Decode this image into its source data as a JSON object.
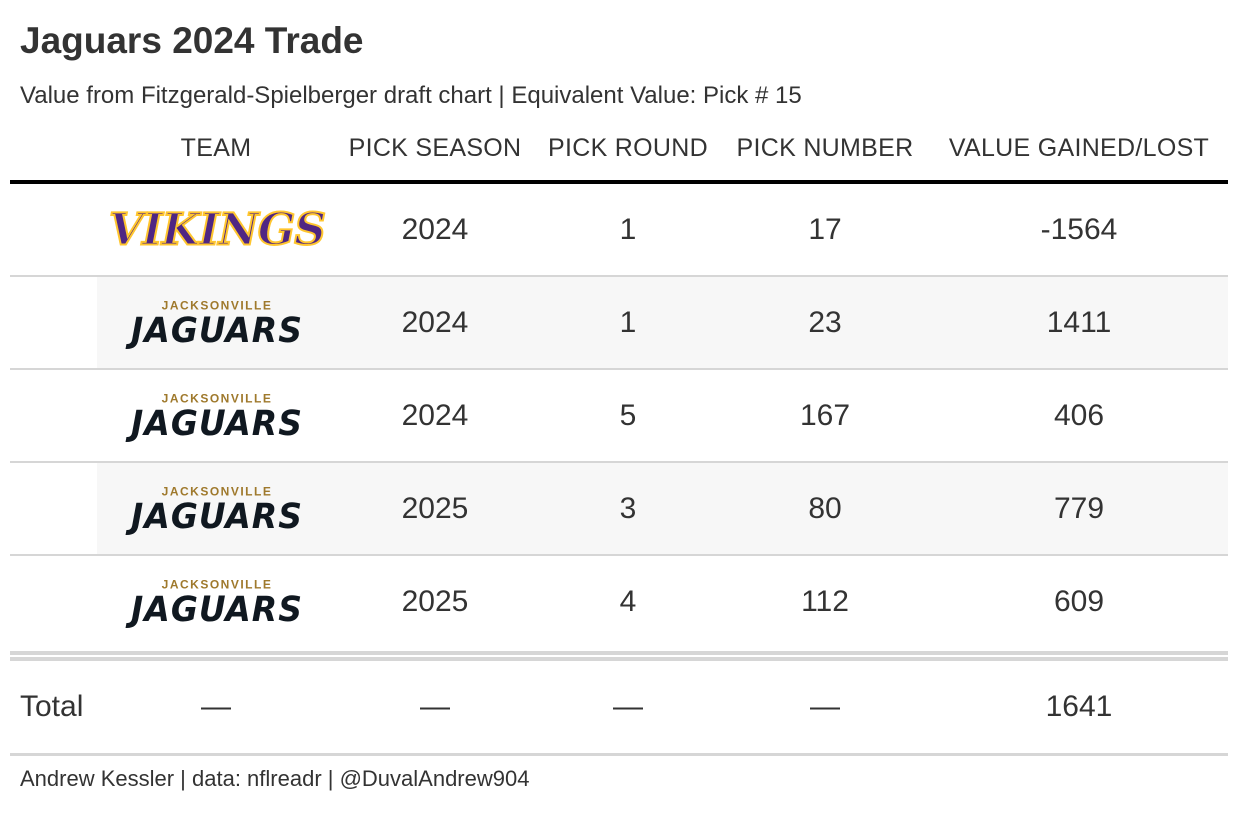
{
  "title": "Jaguars 2024 Trade",
  "subtitle": "Value from Fitzgerald-Spielberger draft chart | Equivalent Value: Pick # 15",
  "columns": [
    "TEAM",
    "PICK SEASON",
    "PICK ROUND",
    "PICK NUMBER",
    "VALUE GAINED/LOST"
  ],
  "rows": [
    {
      "team_logo": "vikings-logo",
      "logo_text": "VIKINGS",
      "season": "2024",
      "round": "1",
      "pick": "17",
      "value": "-1564"
    },
    {
      "team_logo": "jaguars-logo",
      "logo_top": "JACKSONVILLE",
      "logo_text": "JAGUARS",
      "season": "2024",
      "round": "1",
      "pick": "23",
      "value": "1411"
    },
    {
      "team_logo": "jaguars-logo",
      "logo_top": "JACKSONVILLE",
      "logo_text": "JAGUARS",
      "season": "2024",
      "round": "5",
      "pick": "167",
      "value": "406"
    },
    {
      "team_logo": "jaguars-logo",
      "logo_top": "JACKSONVILLE",
      "logo_text": "JAGUARS",
      "season": "2025",
      "round": "3",
      "pick": "80",
      "value": "779"
    },
    {
      "team_logo": "jaguars-logo",
      "logo_top": "JACKSONVILLE",
      "logo_text": "JAGUARS",
      "season": "2025",
      "round": "4",
      "pick": "112",
      "value": "609"
    }
  ],
  "total": {
    "label": "Total",
    "team": "—",
    "season": "—",
    "round": "—",
    "pick": "—",
    "value": "1641"
  },
  "source": "Andrew Kessler | data: nflreadr | @DuvalAndrew904",
  "colors": {
    "vikings_purple": "#4f2683",
    "vikings_gold": "#ffc62f",
    "jaguars_gold": "#9f792c",
    "jaguars_black": "#101820",
    "stripe": "#f7f7f7"
  }
}
